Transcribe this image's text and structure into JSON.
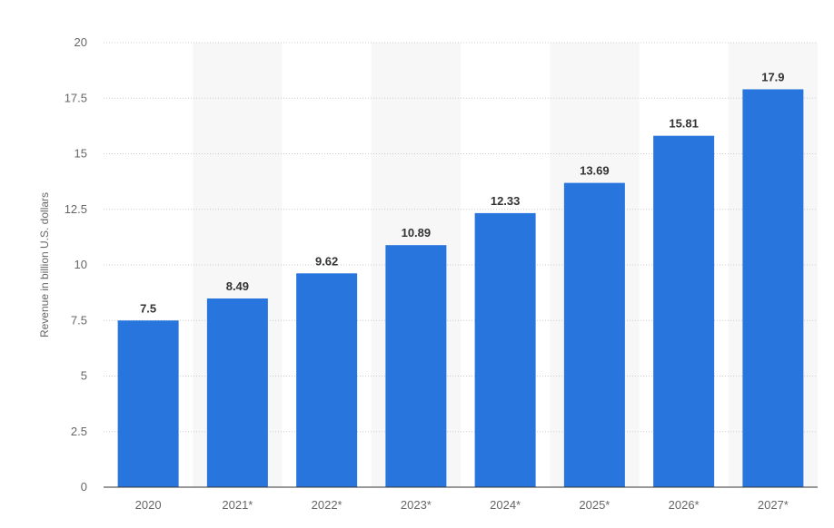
{
  "chart_data": {
    "type": "bar",
    "categories": [
      "2020",
      "2021*",
      "2022*",
      "2023*",
      "2024*",
      "2025*",
      "2026*",
      "2027*"
    ],
    "values": [
      7.5,
      8.49,
      9.62,
      10.89,
      12.33,
      13.69,
      15.81,
      17.9
    ],
    "value_labels": [
      "7.5",
      "8.49",
      "9.62",
      "10.89",
      "12.33",
      "13.69",
      "15.81",
      "17.9"
    ],
    "ylabel": "Revenue in billion U.S. dollars",
    "ylim": [
      0,
      20
    ],
    "yticks": [
      0,
      2.5,
      5,
      7.5,
      10,
      12.5,
      15,
      17.5,
      20
    ],
    "ytick_labels": [
      "0",
      "2.5",
      "5",
      "7.5",
      "10",
      "12.5",
      "15",
      "17.5",
      "20"
    ],
    "grid": true,
    "bar_color": "#2876dd",
    "alt_band_color": "#f7f7f7",
    "gridline_color": "#cccccc",
    "axis_color": "#333333"
  }
}
